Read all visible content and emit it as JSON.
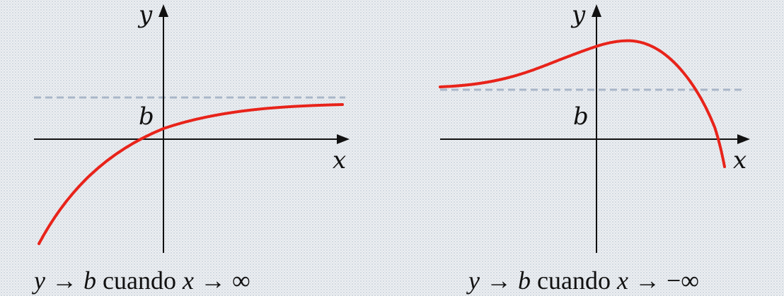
{
  "panels": [
    {
      "id": "left",
      "y_axis_label": "y",
      "x_axis_label": "x",
      "asymptote_label": "b",
      "caption": {
        "y": "y",
        "arrow1": "→",
        "b": "b",
        "word": "cuando",
        "x": "x",
        "arrow2": "→",
        "limit": "∞"
      }
    },
    {
      "id": "right",
      "y_axis_label": "y",
      "x_axis_label": "x",
      "asymptote_label": "b",
      "caption": {
        "y": "y",
        "arrow1": "→",
        "b": "b",
        "word": "cuando",
        "x": "x",
        "arrow2": "→",
        "limit": "−∞"
      }
    }
  ],
  "colors": {
    "curve": "#e8231a",
    "axes": "#111111",
    "asymptote": "#a9b6c8"
  }
}
